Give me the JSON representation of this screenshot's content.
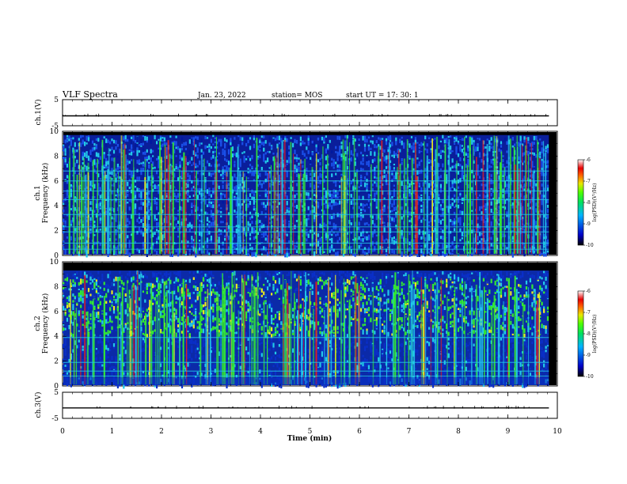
{
  "header": {
    "title": "VLF Spectra",
    "date": "Jan. 23, 2022",
    "station": "station= MOS",
    "start": "start  UT =   17: 30: 1"
  },
  "chart_data": [
    {
      "type": "line",
      "panel": "ch1-waveform",
      "ylabel": "ch.1(V)",
      "ylim": [
        -5,
        5
      ],
      "yticks": [
        "5",
        "-5"
      ],
      "xlim": [
        0,
        10
      ],
      "x": [
        0,
        9.83
      ],
      "values": [
        -1.2,
        -1.2
      ]
    },
    {
      "type": "heatmap",
      "panel": "ch1-spectrogram",
      "ylabel": "ch.1\nFrequency (kHz)",
      "ylim": [
        0,
        10
      ],
      "yticks": [
        "0",
        "2",
        "4",
        "6",
        "8",
        "10"
      ],
      "xlim": [
        0,
        10
      ],
      "x_end": 9.83,
      "colorbar": {
        "label": "log(PSD)(V²/Hz)",
        "ticks": [
          "-6",
          "-7",
          "-8",
          "-9",
          "-10"
        ],
        "range": [
          -10,
          -6
        ]
      },
      "top_frequency_khz": 9.7,
      "bright_bands_khz": [
        0.5,
        1.0,
        1.9,
        2.3,
        3.3,
        4.5,
        5.2,
        6.0,
        6.8
      ]
    },
    {
      "type": "heatmap",
      "panel": "ch2-spectrogram",
      "ylabel": "ch.2\nFrequency (kHz)",
      "ylim": [
        0,
        10
      ],
      "yticks": [
        "0",
        "2",
        "4",
        "6",
        "8",
        "10"
      ],
      "xlim": [
        0,
        10
      ],
      "x_end": 9.83,
      "colorbar": {
        "label": "log(PSD)(V²/Hz)",
        "ticks": [
          "-6",
          "-7",
          "-8",
          "-9",
          "-10"
        ],
        "range": [
          -10,
          -6
        ]
      },
      "top_frequency_khz": 9.3,
      "bright_bands_khz": [
        0.8,
        1.2,
        1.9,
        3.9
      ]
    },
    {
      "type": "line",
      "panel": "ch3-waveform",
      "ylabel": "ch.3(V)",
      "ylim": [
        -5,
        5
      ],
      "yticks": [
        "5",
        "-5"
      ],
      "xlim": [
        0,
        10
      ],
      "x": [
        0,
        9.83
      ],
      "values": [
        -1.0,
        -1.0
      ]
    }
  ],
  "xaxis": {
    "label": "Time (min)",
    "ticks": [
      "0",
      "1",
      "2",
      "3",
      "4",
      "5",
      "6",
      "7",
      "8",
      "9",
      "10"
    ]
  },
  "colors": {
    "background": "#000000",
    "blue": "#0a2fc8",
    "cyan": "#22c8e8",
    "green": "#33e833",
    "yellow": "#e8e822",
    "red": "#e81e1e"
  }
}
